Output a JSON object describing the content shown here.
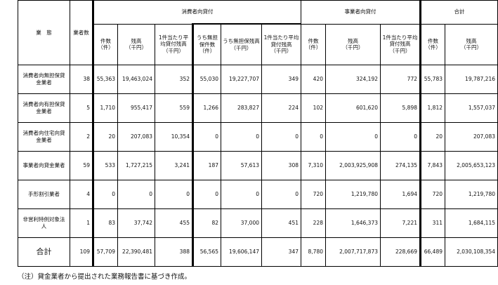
{
  "table": {
    "header": {
      "category": "業　態",
      "firms": "業者数",
      "consumer": "消費者向貸付",
      "business": "事業者向貸付",
      "total": "合計",
      "consumer_cols": [
        "件数\n（件）",
        "残高\n（千円）",
        "1件当たり平均貸付残高\n（千円）",
        "うち無担保件数\n（件）",
        "うち無担保残高\n（千円）",
        "1件当たり平均貸付残高\n（千円）"
      ],
      "business_cols": [
        "件数\n（件）",
        "残高\n（千円）",
        "1件当たり平均貸付残高\n（千円）"
      ],
      "total_cols": [
        "件数\n（件）",
        "残高\n（千円）"
      ]
    },
    "rows": [
      {
        "category": "消費者向無担保貸金業者",
        "values": [
          "38",
          "55,363",
          "19,463,024",
          "352",
          "55,030",
          "19,227,707",
          "349",
          "420",
          "324,192",
          "772",
          "55,783",
          "19,787,216"
        ]
      },
      {
        "category": "消費者向有担保貸金業者",
        "values": [
          "5",
          "1,710",
          "955,417",
          "559",
          "1,266",
          "283,827",
          "224",
          "102",
          "601,620",
          "5,898",
          "1,812",
          "1,557,037"
        ]
      },
      {
        "category": "消費者向住宅向貸金業者",
        "values": [
          "2",
          "20",
          "207,083",
          "10,354",
          "0",
          "0",
          "0",
          "0",
          "0",
          "0",
          "20",
          "207,083"
        ]
      },
      {
        "category": "事業者向貸金業者",
        "values": [
          "59",
          "533",
          "1,727,215",
          "3,241",
          "187",
          "57,613",
          "308",
          "7,310",
          "2,003,925,908",
          "274,135",
          "7,843",
          "2,005,653,123"
        ]
      },
      {
        "category": "手形割引業者",
        "values": [
          "4",
          "0",
          "0",
          "0",
          "0",
          "0",
          "0",
          "720",
          "1,219,780",
          "1,694",
          "720",
          "1,219,780"
        ]
      },
      {
        "category": "非営利特例対象法人",
        "values": [
          "1",
          "83",
          "37,742",
          "455",
          "82",
          "37,000",
          "451",
          "228",
          "1,646,373",
          "7,221",
          "311",
          "1,684,115"
        ]
      }
    ],
    "total_row": {
      "category": "合計",
      "values": [
        "109",
        "57,709",
        "22,390,481",
        "388",
        "56,565",
        "19,606,147",
        "347",
        "8,780",
        "2,007,717,873",
        "228,669",
        "66,489",
        "2,030,108,354"
      ]
    }
  },
  "note": "（注）貸金業者から提出された業務報告書に基づき作成。"
}
